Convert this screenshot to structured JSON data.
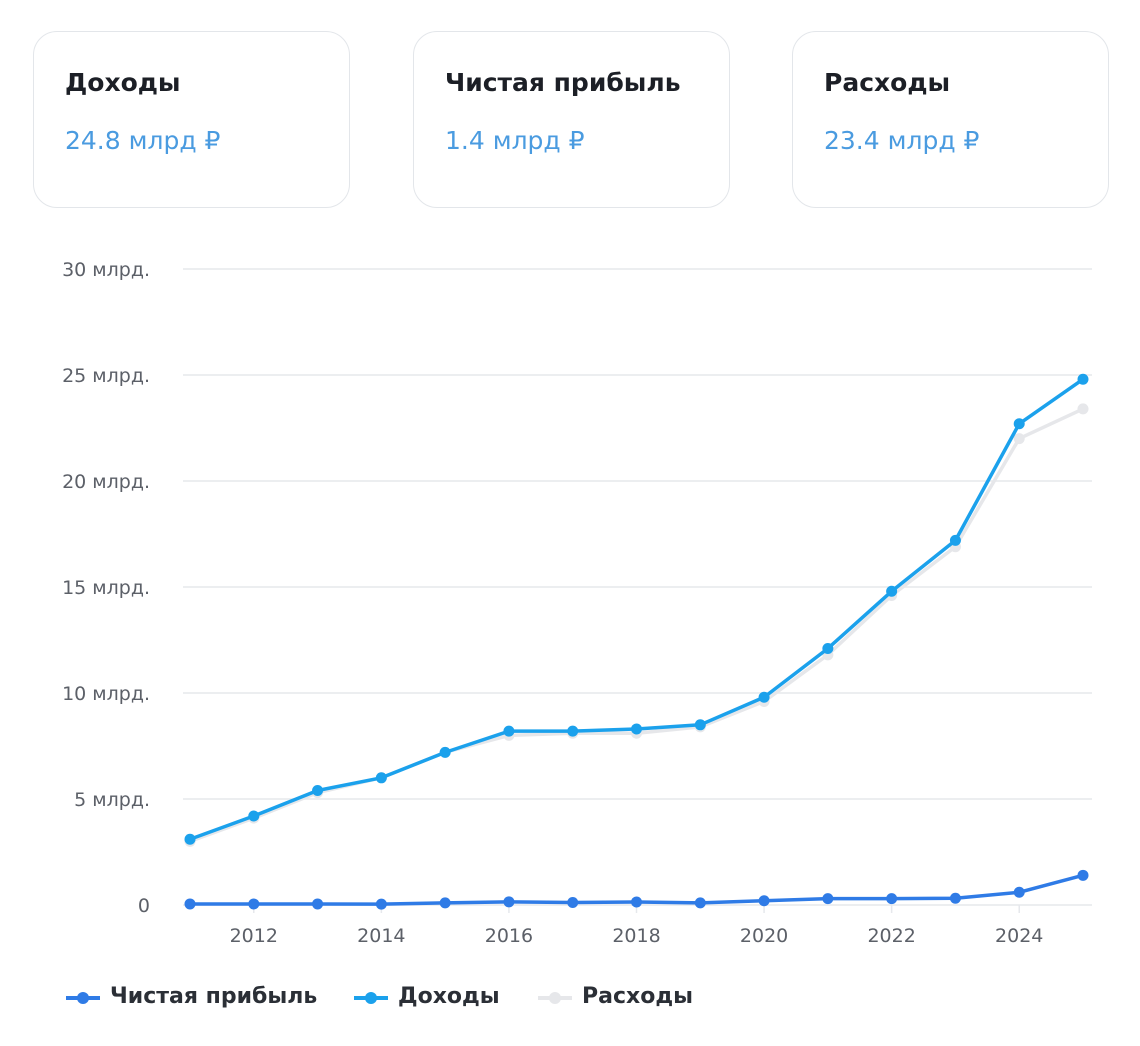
{
  "cards": [
    {
      "title": "Доходы",
      "value": "24.8 млрд ₽"
    },
    {
      "title": "Чистая прибыль",
      "value": "1.4 млрд ₽"
    },
    {
      "title": "Расходы",
      "value": "23.4 млрд ₽"
    }
  ],
  "colors": {
    "profit": "#2f7be6",
    "revenue": "#1ba1ec",
    "expenses": "#e6e7ea",
    "value_text": "#4a9be0",
    "grid": "#e6e8ec"
  },
  "chart_data": {
    "type": "line",
    "x": [
      2011,
      2012,
      2013,
      2014,
      2015,
      2016,
      2017,
      2018,
      2019,
      2020,
      2021,
      2022,
      2023,
      2024,
      2025
    ],
    "x_ticks": [
      2012,
      2014,
      2016,
      2018,
      2020,
      2022,
      2024
    ],
    "x_tick_labels": [
      "2012",
      "2014",
      "2016",
      "2018",
      "2020",
      "2022",
      "2024"
    ],
    "y_ticks": [
      0,
      5,
      10,
      15,
      20,
      25,
      30
    ],
    "y_tick_labels": [
      "0",
      "5 млрд.",
      "10 млрд.",
      "15 млрд.",
      "20 млрд.",
      "25 млрд.",
      "30 млрд."
    ],
    "ylim": [
      0,
      30
    ],
    "xlim": [
      2011,
      2025
    ],
    "grid": true,
    "legend_position": "bottom-left",
    "series": [
      {
        "key": "profit",
        "name": "Чистая прибыль",
        "values": [
          0.05,
          0.05,
          0.05,
          0.04,
          0.1,
          0.15,
          0.12,
          0.14,
          0.1,
          0.2,
          0.3,
          0.3,
          0.32,
          0.6,
          1.4
        ]
      },
      {
        "key": "revenue",
        "name": "Доходы",
        "values": [
          3.1,
          4.2,
          5.4,
          6.0,
          7.2,
          8.2,
          8.2,
          8.3,
          8.5,
          9.8,
          12.1,
          14.8,
          17.2,
          22.7,
          24.8
        ]
      },
      {
        "key": "expenses",
        "name": "Расходы",
        "values": [
          3.0,
          4.1,
          5.3,
          6.0,
          7.2,
          8.0,
          8.1,
          8.1,
          8.4,
          9.6,
          11.8,
          14.6,
          16.9,
          22.0,
          23.4
        ]
      }
    ]
  }
}
